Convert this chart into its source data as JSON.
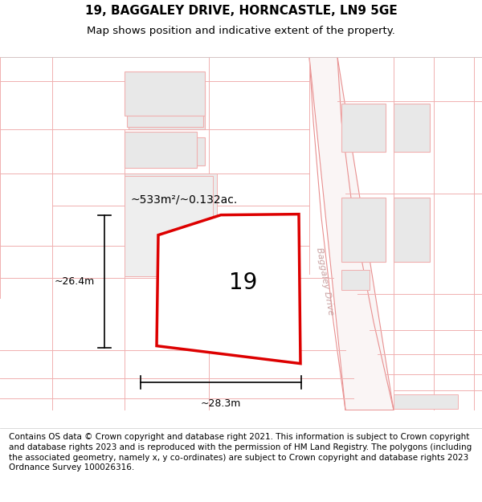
{
  "title_line1": "19, BAGGALEY DRIVE, HORNCASTLE, LN9 5GE",
  "title_line2": "Map shows position and indicative extent of the property.",
  "footer_text": "Contains OS data © Crown copyright and database right 2021. This information is subject to Crown copyright and database rights 2023 and is reproduced with the permission of HM Land Registry. The polygons (including the associated geometry, namely x, y co-ordinates) are subject to Crown copyright and database rights 2023 Ordnance Survey 100026316.",
  "background_color": "#ffffff",
  "map_bg_color": "#ffffff",
  "plot_color": "#dd0000",
  "plot_fill": "#ffffff",
  "plot_label": "19",
  "area_label": "~533m²/~0.132ac.",
  "width_label": "~28.3m",
  "height_label": "~26.4m",
  "road_label": "Baggaley Drive",
  "pink": "#f0b0b0",
  "pink_dark": "#e89090",
  "building_fill": "#e8e8e8",
  "building_edge": "#f0b0b0",
  "dim_color": "#000000",
  "road_text_color": "#c8a0a0",
  "title_fontsize": 11,
  "subtitle_fontsize": 9.5,
  "footer_fontsize": 7.5,
  "plot_label_fontsize": 20,
  "area_label_fontsize": 10,
  "dim_fontsize": 9
}
